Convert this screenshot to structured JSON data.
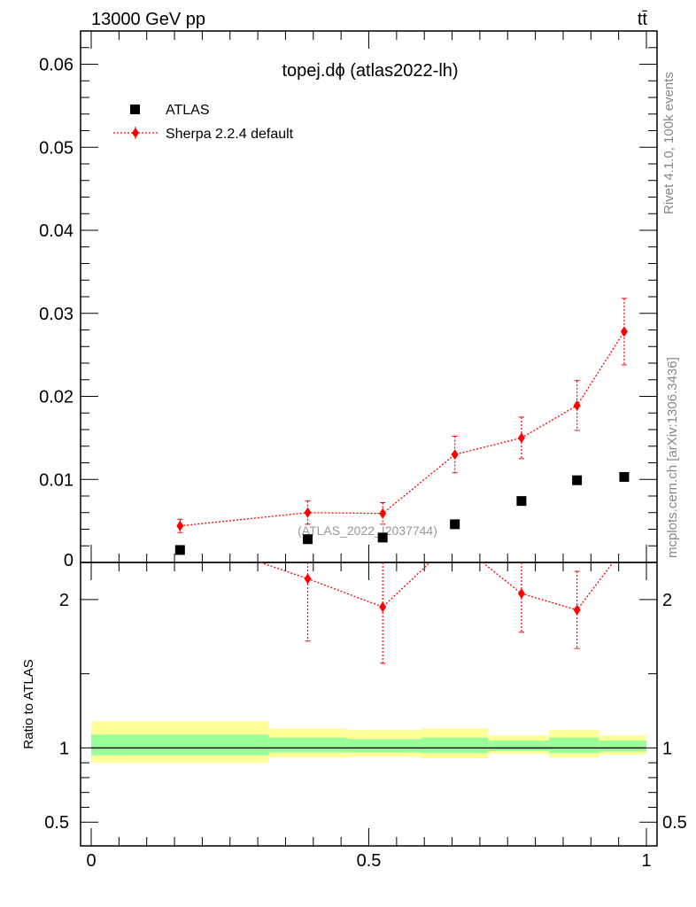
{
  "header": {
    "energy_label": "13000 GeV pp",
    "process_label": "tt̄",
    "rivet_label": "Rivet 4.1.0,  100k events",
    "site_label": "mcplots.cern.ch [arXiv:1306.3436]"
  },
  "chart_data": {
    "type": "scatter",
    "title": "topej.dϕ (atlas2022-lh)",
    "watermark": "(ATLAS_2022_I2037744)",
    "xlim": [
      0,
      1
    ],
    "main_ylim": [
      0,
      0.064
    ],
    "ratio_ylim": [
      0.34,
      2.25
    ],
    "xticks": [
      {
        "value": 0,
        "label": "0"
      },
      {
        "value": 0.5,
        "label": "0.5"
      },
      {
        "value": 1,
        "label": "1"
      }
    ],
    "main_yticks": [
      {
        "value": 0,
        "label": "0"
      },
      {
        "value": 0.01,
        "label": "0.01"
      },
      {
        "value": 0.02,
        "label": "0.02"
      },
      {
        "value": 0.03,
        "label": "0.03"
      },
      {
        "value": 0.04,
        "label": "0.04"
      },
      {
        "value": 0.05,
        "label": "0.05"
      },
      {
        "value": 0.06,
        "label": "0.06"
      }
    ],
    "ratio_yticks": [
      {
        "value": 0.5,
        "label": "0.5"
      },
      {
        "value": 1,
        "label": "1"
      },
      {
        "value": 2,
        "label": "2"
      }
    ],
    "ratio_ylabel": "Ratio to ATLAS",
    "legend": [
      {
        "name": "ATLAS",
        "marker": "square",
        "color": "#000000"
      },
      {
        "name": "Sherpa 2.2.4 default",
        "marker": "diamond",
        "color": "#ff0000"
      }
    ],
    "series": [
      {
        "name": "ATLAS",
        "x": [
          0.16,
          0.39,
          0.525,
          0.655,
          0.775,
          0.875,
          0.96
        ],
        "y": [
          0.0015,
          0.0028,
          0.003,
          0.0046,
          0.0074,
          0.0099,
          0.0103
        ]
      },
      {
        "name": "Sherpa 2.2.4 default",
        "x": [
          0.16,
          0.39,
          0.525,
          0.655,
          0.775,
          0.875,
          0.96
        ],
        "y": [
          0.0044,
          0.006,
          0.0059,
          0.013,
          0.015,
          0.0189,
          0.0278
        ],
        "yerr": [
          0.0008,
          0.0014,
          0.0013,
          0.0022,
          0.0025,
          0.003,
          0.004
        ]
      }
    ],
    "ratio_series": {
      "name": "Sherpa 2.2.4 default",
      "points": [
        {
          "x": 0.39,
          "y": 2.14,
          "err_lo": 0.42,
          "err_hi": 0.42
        },
        {
          "x": 0.525,
          "y": 1.95,
          "err_lo": 0.38,
          "err_hi": 0.38
        },
        {
          "x": 0.775,
          "y": 2.04,
          "err_lo": 0.26,
          "err_hi": 0.26
        },
        {
          "x": 0.875,
          "y": 1.93,
          "err_lo": 0.26,
          "err_hi": 0.26
        }
      ],
      "line_path": [
        {
          "x": 0.305,
          "y": 2.32
        },
        {
          "x": 0.39,
          "y": 2.14
        },
        {
          "x": 0.525,
          "y": 1.95
        },
        {
          "x": 0.61,
          "y": 2.32
        }
      ],
      "line_path2": [
        {
          "x": 0.705,
          "y": 2.32
        },
        {
          "x": 0.775,
          "y": 2.04
        },
        {
          "x": 0.875,
          "y": 1.93
        },
        {
          "x": 0.94,
          "y": 2.32
        }
      ]
    },
    "ratio_bands": [
      {
        "xlo": 0.0,
        "xhi": 0.32,
        "yellow": [
          0.9,
          1.18
        ],
        "green": [
          0.95,
          1.09
        ]
      },
      {
        "xlo": 0.32,
        "xhi": 0.46,
        "yellow": [
          0.935,
          1.13
        ],
        "green": [
          0.97,
          1.07
        ]
      },
      {
        "xlo": 0.46,
        "xhi": 0.595,
        "yellow": [
          0.94,
          1.12
        ],
        "green": [
          0.97,
          1.06
        ]
      },
      {
        "xlo": 0.595,
        "xhi": 0.715,
        "yellow": [
          0.93,
          1.13
        ],
        "green": [
          0.965,
          1.07
        ]
      },
      {
        "xlo": 0.715,
        "xhi": 0.825,
        "yellow": [
          0.96,
          1.085
        ],
        "green": [
          0.98,
          1.05
        ]
      },
      {
        "xlo": 0.825,
        "xhi": 0.915,
        "yellow": [
          0.935,
          1.12
        ],
        "green": [
          0.965,
          1.07
        ]
      },
      {
        "xlo": 0.915,
        "xhi": 1.0,
        "yellow": [
          0.955,
          1.085
        ],
        "green": [
          0.975,
          1.05
        ]
      }
    ],
    "colors": {
      "mc": "#ff0000",
      "data": "#000000",
      "band_green": "#99ff99",
      "band_yellow": "#ffff99",
      "watermark": "#999999",
      "side_text": "#888888"
    }
  }
}
